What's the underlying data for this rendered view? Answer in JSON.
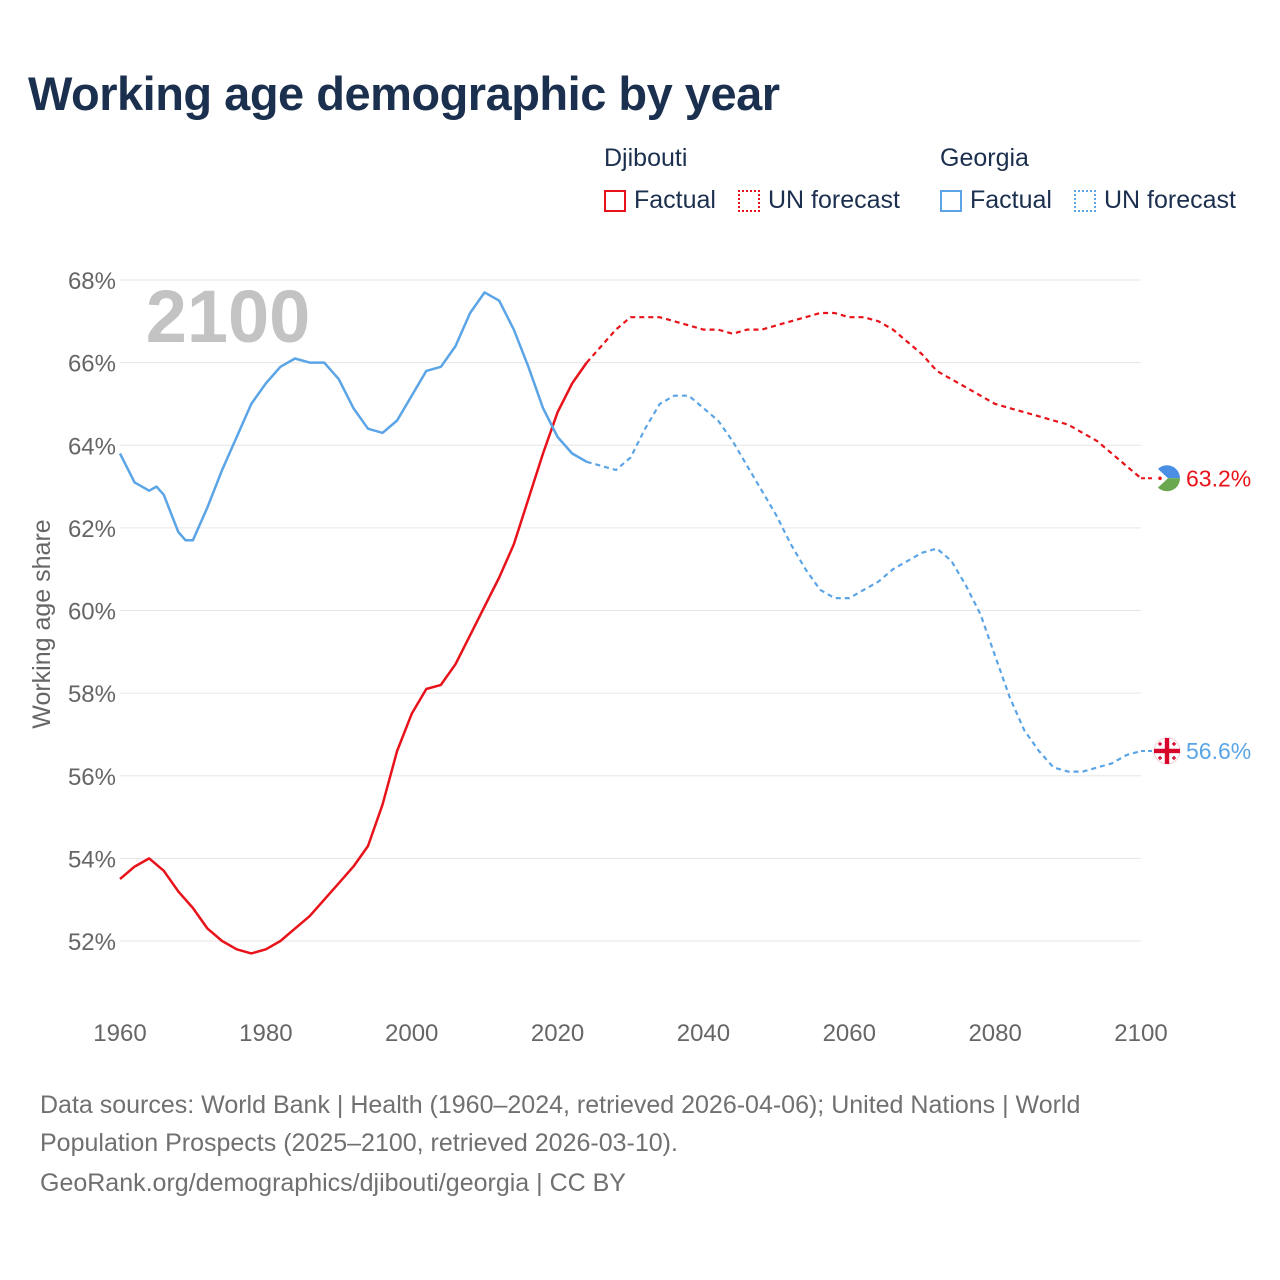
{
  "header": {
    "title": "Working age demographic by year"
  },
  "legend": {
    "groups": [
      {
        "country": "Djibouti",
        "factual_label": "Factual",
        "forecast_label": "UN forecast",
        "color": "#e8131a"
      },
      {
        "country": "Georgia",
        "factual_label": "Factual",
        "forecast_label": "UN forecast",
        "color": "#5ba4e6"
      }
    ]
  },
  "chart_data": {
    "type": "line",
    "title": "Working age demographic by year",
    "xlabel": "",
    "ylabel": "Working age share",
    "xlim": [
      1960,
      2100
    ],
    "ylim": [
      51,
      68.5
    ],
    "x_ticks": [
      "1960",
      "1980",
      "2000",
      "2020",
      "2040",
      "2060",
      "2080",
      "2100"
    ],
    "x_tick_values": [
      1960,
      1980,
      2000,
      2020,
      2040,
      2060,
      2080,
      2100
    ],
    "y_ticks": [
      "52%",
      "54%",
      "56%",
      "58%",
      "60%",
      "62%",
      "64%",
      "66%",
      "68%"
    ],
    "y_tick_values": [
      52,
      54,
      56,
      58,
      60,
      62,
      64,
      66,
      68
    ],
    "grid": true,
    "year_watermark": "2100",
    "factual_end_year": 2024,
    "series": [
      {
        "name": "Djibouti",
        "color": "#e8131a",
        "end_label": "63.2%",
        "flag_icon": "djibouti-flag-icon",
        "points": [
          [
            1960,
            53.5
          ],
          [
            1962,
            53.8
          ],
          [
            1964,
            54.0
          ],
          [
            1966,
            53.7
          ],
          [
            1968,
            53.2
          ],
          [
            1970,
            52.8
          ],
          [
            1972,
            52.3
          ],
          [
            1974,
            52.0
          ],
          [
            1976,
            51.8
          ],
          [
            1978,
            51.7
          ],
          [
            1980,
            51.8
          ],
          [
            1982,
            52.0
          ],
          [
            1984,
            52.3
          ],
          [
            1986,
            52.6
          ],
          [
            1988,
            53.0
          ],
          [
            1990,
            53.4
          ],
          [
            1992,
            53.8
          ],
          [
            1994,
            54.3
          ],
          [
            1996,
            55.3
          ],
          [
            1998,
            56.6
          ],
          [
            2000,
            57.5
          ],
          [
            2002,
            58.1
          ],
          [
            2004,
            58.2
          ],
          [
            2006,
            58.7
          ],
          [
            2008,
            59.4
          ],
          [
            2010,
            60.1
          ],
          [
            2012,
            60.8
          ],
          [
            2014,
            61.6
          ],
          [
            2016,
            62.7
          ],
          [
            2018,
            63.8
          ],
          [
            2020,
            64.8
          ],
          [
            2022,
            65.5
          ],
          [
            2024,
            66.0
          ],
          [
            2026,
            66.4
          ],
          [
            2028,
            66.8
          ],
          [
            2030,
            67.1
          ],
          [
            2032,
            67.1
          ],
          [
            2034,
            67.1
          ],
          [
            2036,
            67.0
          ],
          [
            2038,
            66.9
          ],
          [
            2040,
            66.8
          ],
          [
            2042,
            66.8
          ],
          [
            2044,
            66.7
          ],
          [
            2046,
            66.8
          ],
          [
            2048,
            66.8
          ],
          [
            2050,
            66.9
          ],
          [
            2052,
            67.0
          ],
          [
            2054,
            67.1
          ],
          [
            2056,
            67.2
          ],
          [
            2058,
            67.2
          ],
          [
            2060,
            67.1
          ],
          [
            2062,
            67.1
          ],
          [
            2064,
            67.0
          ],
          [
            2066,
            66.8
          ],
          [
            2068,
            66.5
          ],
          [
            2070,
            66.2
          ],
          [
            2072,
            65.8
          ],
          [
            2074,
            65.6
          ],
          [
            2076,
            65.4
          ],
          [
            2078,
            65.2
          ],
          [
            2080,
            65.0
          ],
          [
            2082,
            64.9
          ],
          [
            2084,
            64.8
          ],
          [
            2086,
            64.7
          ],
          [
            2088,
            64.6
          ],
          [
            2090,
            64.5
          ],
          [
            2092,
            64.3
          ],
          [
            2094,
            64.1
          ],
          [
            2096,
            63.8
          ],
          [
            2098,
            63.5
          ],
          [
            2100,
            63.2
          ]
        ]
      },
      {
        "name": "Georgia",
        "color": "#5ba4e6",
        "end_label": "56.6%",
        "flag_icon": "georgia-flag-icon",
        "points": [
          [
            1960,
            63.8
          ],
          [
            1962,
            63.1
          ],
          [
            1964,
            62.9
          ],
          [
            1965,
            63.0
          ],
          [
            1966,
            62.8
          ],
          [
            1968,
            61.9
          ],
          [
            1969,
            61.7
          ],
          [
            1970,
            61.7
          ],
          [
            1972,
            62.5
          ],
          [
            1974,
            63.4
          ],
          [
            1976,
            64.2
          ],
          [
            1978,
            65.0
          ],
          [
            1980,
            65.5
          ],
          [
            1982,
            65.9
          ],
          [
            1984,
            66.1
          ],
          [
            1986,
            66.0
          ],
          [
            1988,
            66.0
          ],
          [
            1990,
            65.6
          ],
          [
            1992,
            64.9
          ],
          [
            1994,
            64.4
          ],
          [
            1996,
            64.3
          ],
          [
            1998,
            64.6
          ],
          [
            2000,
            65.2
          ],
          [
            2002,
            65.8
          ],
          [
            2004,
            65.9
          ],
          [
            2006,
            66.4
          ],
          [
            2008,
            67.2
          ],
          [
            2010,
            67.7
          ],
          [
            2012,
            67.5
          ],
          [
            2014,
            66.8
          ],
          [
            2016,
            65.9
          ],
          [
            2018,
            64.9
          ],
          [
            2020,
            64.2
          ],
          [
            2022,
            63.8
          ],
          [
            2024,
            63.6
          ],
          [
            2026,
            63.5
          ],
          [
            2028,
            63.4
          ],
          [
            2030,
            63.7
          ],
          [
            2032,
            64.4
          ],
          [
            2034,
            65.0
          ],
          [
            2036,
            65.2
          ],
          [
            2038,
            65.2
          ],
          [
            2040,
            64.9
          ],
          [
            2042,
            64.6
          ],
          [
            2044,
            64.1
          ],
          [
            2046,
            63.5
          ],
          [
            2048,
            62.9
          ],
          [
            2050,
            62.3
          ],
          [
            2052,
            61.6
          ],
          [
            2054,
            61.0
          ],
          [
            2056,
            60.5
          ],
          [
            2058,
            60.3
          ],
          [
            2060,
            60.3
          ],
          [
            2062,
            60.5
          ],
          [
            2064,
            60.7
          ],
          [
            2066,
            61.0
          ],
          [
            2068,
            61.2
          ],
          [
            2070,
            61.4
          ],
          [
            2072,
            61.5
          ],
          [
            2074,
            61.2
          ],
          [
            2076,
            60.6
          ],
          [
            2078,
            59.9
          ],
          [
            2080,
            58.9
          ],
          [
            2082,
            57.9
          ],
          [
            2084,
            57.1
          ],
          [
            2086,
            56.6
          ],
          [
            2088,
            56.2
          ],
          [
            2090,
            56.1
          ],
          [
            2092,
            56.1
          ],
          [
            2094,
            56.2
          ],
          [
            2096,
            56.3
          ],
          [
            2098,
            56.5
          ],
          [
            2100,
            56.6
          ]
        ]
      }
    ]
  },
  "footer": {
    "line1": "Data sources: World Bank | Health (1960–2024, retrieved 2026-04-06); United Nations | World",
    "line2": "Population Prospects (2025–2100, retrieved 2026-03-10).",
    "line3": "GeoRank.org/demographics/djibouti/georgia | CC BY"
  }
}
